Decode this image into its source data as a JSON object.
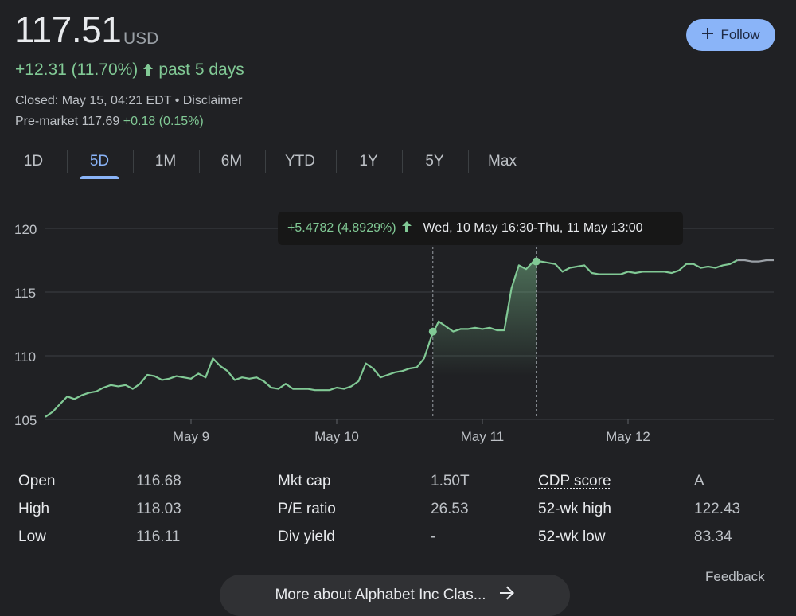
{
  "quote": {
    "price": "117.51",
    "currency": "USD",
    "change": "+12.31 (11.70%)",
    "period": "past 5 days",
    "closed": "Closed: May 15, 04:21 EDT • Disclaimer",
    "premarket_label": "Pre-market 117.69",
    "premarket_change": "+0.18 (0.15%)"
  },
  "follow_button": {
    "label": "Follow"
  },
  "tabs": [
    "1D",
    "5D",
    "1M",
    "6M",
    "YTD",
    "1Y",
    "5Y",
    "Max"
  ],
  "active_tab": "5D",
  "tooltip": {
    "change": "+5.4782 (4.8929%)",
    "range": "Wed, 10 May 16:30-Thu, 11 May 13:00"
  },
  "stats": {
    "open": {
      "label": "Open",
      "value": "116.68"
    },
    "high": {
      "label": "High",
      "value": "118.03"
    },
    "low": {
      "label": "Low",
      "value": "116.11"
    },
    "mkt_cap": {
      "label": "Mkt cap",
      "value": "1.50T"
    },
    "pe_ratio": {
      "label": "P/E ratio",
      "value": "26.53"
    },
    "div_yield": {
      "label": "Div yield",
      "value": "-"
    },
    "cdp_score": {
      "label": "CDP score",
      "value": "A"
    },
    "wk52_high": {
      "label": "52-wk high",
      "value": "122.43"
    },
    "wk52_low": {
      "label": "52-wk low",
      "value": "83.34"
    }
  },
  "feedback": "Feedback",
  "more_button": {
    "label": "More about Alphabet Inc Clas..."
  },
  "colors": {
    "background": "#202124",
    "line": "#81c995",
    "line_after_hours": "#9aa0a6",
    "accent": "#8ab4f8"
  },
  "icons": {
    "follow": "plus-icon",
    "change": "arrow-up-icon",
    "more": "arrow-right-icon"
  },
  "chart_data": {
    "type": "line",
    "ylim": [
      105,
      120
    ],
    "yticks": [
      "105",
      "110",
      "115",
      "120"
    ],
    "xticks": [
      {
        "label": "May 9",
        "x": 1
      },
      {
        "label": "May 10",
        "x": 2
      },
      {
        "label": "May 11",
        "x": 3
      },
      {
        "label": "May 12",
        "x": 4
      }
    ],
    "grid": true,
    "x_range": [
      0,
      5
    ],
    "selection": {
      "start_x": 2.66,
      "end_x": 3.37,
      "start_y": 111.9,
      "end_y": 117.4
    },
    "series": [
      {
        "values": [
          [
            0.0,
            105.2
          ],
          [
            0.05,
            105.6
          ],
          [
            0.1,
            106.2
          ],
          [
            0.15,
            106.8
          ],
          [
            0.2,
            106.6
          ],
          [
            0.25,
            106.9
          ],
          [
            0.3,
            107.1
          ],
          [
            0.35,
            107.2
          ],
          [
            0.4,
            107.5
          ],
          [
            0.45,
            107.7
          ],
          [
            0.5,
            107.6
          ],
          [
            0.55,
            107.7
          ],
          [
            0.6,
            107.4
          ],
          [
            0.65,
            107.8
          ],
          [
            0.7,
            108.5
          ],
          [
            0.75,
            108.4
          ],
          [
            0.8,
            108.1
          ],
          [
            0.85,
            108.2
          ],
          [
            0.9,
            108.4
          ],
          [
            0.95,
            108.3
          ],
          [
            1.0,
            108.2
          ],
          [
            1.05,
            108.6
          ],
          [
            1.1,
            108.3
          ],
          [
            1.15,
            109.8
          ],
          [
            1.2,
            109.2
          ],
          [
            1.25,
            108.8
          ],
          [
            1.3,
            108.1
          ],
          [
            1.35,
            108.3
          ],
          [
            1.4,
            108.2
          ],
          [
            1.45,
            108.3
          ],
          [
            1.5,
            108.0
          ],
          [
            1.55,
            107.5
          ],
          [
            1.6,
            107.4
          ],
          [
            1.65,
            107.8
          ],
          [
            1.7,
            107.4
          ],
          [
            1.75,
            107.4
          ],
          [
            1.8,
            107.4
          ],
          [
            1.85,
            107.3
          ],
          [
            1.9,
            107.3
          ],
          [
            1.95,
            107.3
          ],
          [
            2.0,
            107.5
          ],
          [
            2.05,
            107.4
          ],
          [
            2.1,
            107.6
          ],
          [
            2.15,
            108.0
          ],
          [
            2.2,
            109.4
          ],
          [
            2.25,
            109.0
          ],
          [
            2.3,
            108.3
          ],
          [
            2.35,
            108.5
          ],
          [
            2.4,
            108.7
          ],
          [
            2.45,
            108.8
          ],
          [
            2.5,
            109.0
          ],
          [
            2.55,
            109.1
          ],
          [
            2.6,
            109.8
          ],
          [
            2.65,
            111.5
          ],
          [
            2.7,
            112.7
          ],
          [
            2.75,
            112.3
          ],
          [
            2.8,
            111.9
          ],
          [
            2.85,
            112.1
          ],
          [
            2.9,
            112.1
          ],
          [
            2.95,
            112.2
          ],
          [
            3.0,
            112.1
          ],
          [
            3.05,
            112.2
          ],
          [
            3.1,
            112.0
          ],
          [
            3.15,
            112.0
          ],
          [
            3.2,
            115.3
          ],
          [
            3.25,
            117.1
          ],
          [
            3.3,
            116.8
          ],
          [
            3.35,
            117.4
          ],
          [
            3.4,
            117.4
          ],
          [
            3.45,
            117.3
          ],
          [
            3.5,
            117.2
          ],
          [
            3.55,
            116.6
          ],
          [
            3.6,
            116.9
          ],
          [
            3.65,
            117.0
          ],
          [
            3.7,
            117.1
          ],
          [
            3.75,
            116.5
          ],
          [
            3.8,
            116.4
          ],
          [
            3.85,
            116.4
          ],
          [
            3.9,
            116.4
          ],
          [
            3.95,
            116.4
          ],
          [
            4.0,
            116.6
          ],
          [
            4.05,
            116.5
          ],
          [
            4.1,
            116.6
          ],
          [
            4.15,
            116.6
          ],
          [
            4.2,
            116.6
          ],
          [
            4.25,
            116.6
          ],
          [
            4.3,
            116.5
          ],
          [
            4.35,
            116.7
          ],
          [
            4.4,
            117.2
          ],
          [
            4.45,
            117.2
          ],
          [
            4.5,
            116.9
          ],
          [
            4.55,
            117.0
          ],
          [
            4.6,
            116.9
          ],
          [
            4.65,
            117.1
          ],
          [
            4.7,
            117.2
          ],
          [
            4.75,
            117.5
          ]
        ]
      },
      {
        "values": [
          [
            4.75,
            117.5
          ],
          [
            4.8,
            117.5
          ],
          [
            4.85,
            117.4
          ],
          [
            4.9,
            117.4
          ],
          [
            4.95,
            117.5
          ],
          [
            5.0,
            117.5
          ]
        ]
      }
    ]
  }
}
